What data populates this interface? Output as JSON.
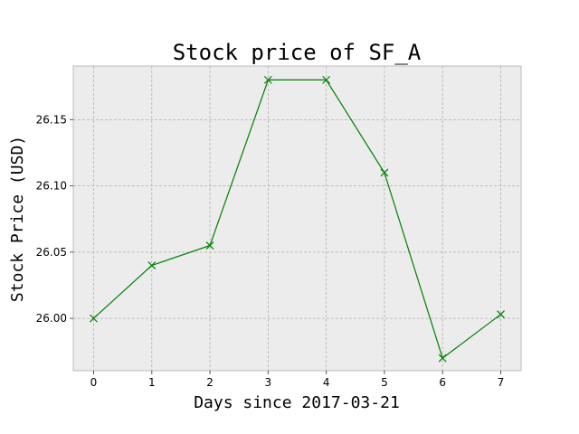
{
  "chart_data": {
    "type": "line",
    "title": "Stock price of SF_A",
    "xlabel": "Days since 2017-03-21",
    "ylabel": "Stock Price (USD)",
    "x": [
      0,
      1,
      2,
      3,
      4,
      5,
      6,
      7
    ],
    "xlim": [
      -0.35,
      7.35
    ],
    "ylim": [
      25.9605,
      26.1905
    ],
    "x_ticks": [
      0,
      1,
      2,
      3,
      4,
      5,
      6,
      7
    ],
    "x_tick_labels": [
      "0",
      "1",
      "2",
      "3",
      "4",
      "5",
      "6",
      "7"
    ],
    "y_ticks": [
      26.0,
      26.05,
      26.1,
      26.15
    ],
    "y_tick_labels": [
      "26.00",
      "26.05",
      "26.10",
      "26.15"
    ],
    "grid": true,
    "series": [
      {
        "values": [
          26.0,
          26.04,
          26.055,
          26.18,
          26.18,
          26.11,
          25.97,
          26.003
        ],
        "color": "#008000",
        "marker": "x"
      }
    ],
    "background_color": "#ececec",
    "grid_color": "#b0b0b0"
  }
}
